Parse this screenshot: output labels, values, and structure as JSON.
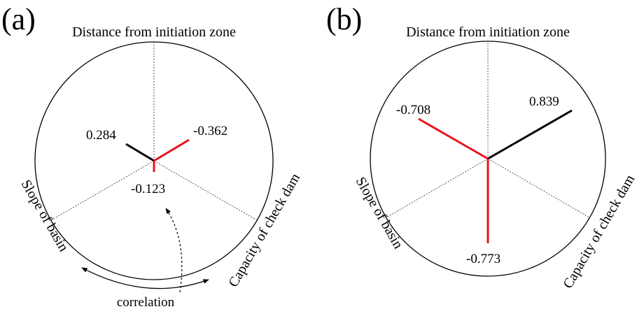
{
  "panels": [
    {
      "id": "a",
      "label": "(a)",
      "axes": {
        "top": "Distance from initiation zone",
        "left": "Slope of basin",
        "right": "Capacity of check dam"
      },
      "values": {
        "top_left": "0.284",
        "top_right": "-0.362",
        "bottom": "-0.123"
      },
      "annotation": "correlation"
    },
    {
      "id": "b",
      "label": "(b)",
      "axes": {
        "top": "Distance from initiation zone",
        "left": "Slope of basin",
        "right": "Capacity of check dam"
      },
      "values": {
        "top_left": "-0.708",
        "top_right": "0.839",
        "bottom": "-0.773"
      }
    }
  ],
  "colors": {
    "positive": "#000000",
    "negative": "#e8141c",
    "guide": "#555555"
  }
}
